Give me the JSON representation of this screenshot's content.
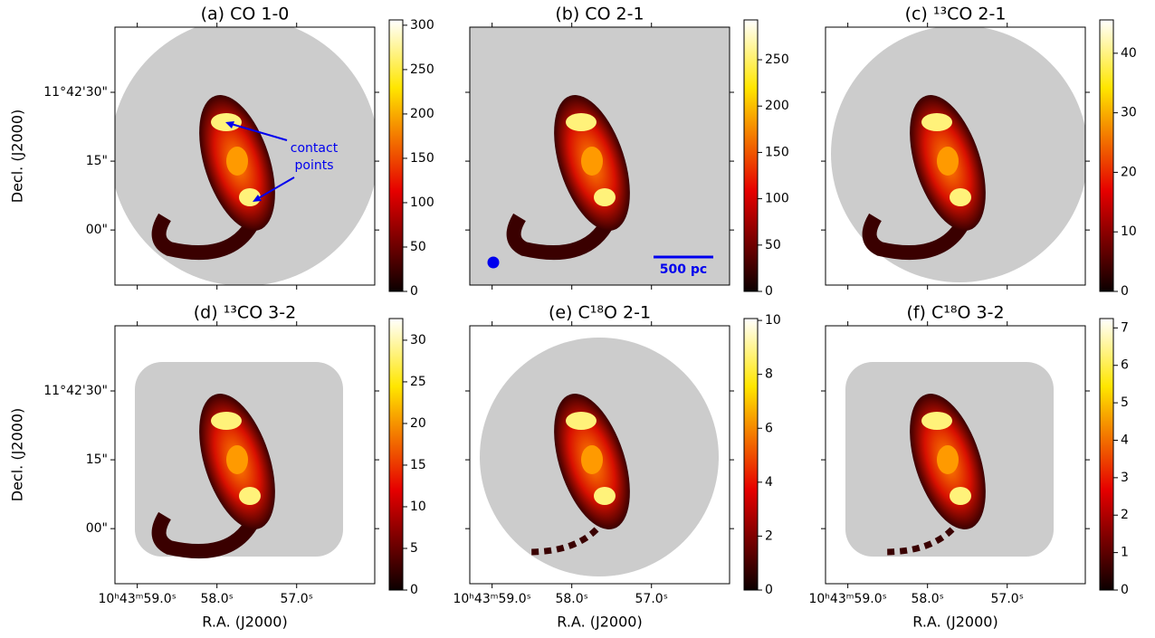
{
  "shared_axes": {
    "xlim": [
      59.28,
      56.02
    ],
    "xticks": [
      {
        "value": 59.0,
        "label": "10ʰ43ᵐ59.0ˢ"
      },
      {
        "value": 58.0,
        "label": "58.0ˢ"
      },
      {
        "value": 57.0,
        "label": "57.0ˢ"
      }
    ],
    "ylim": [
      -12.0,
      44.2
    ],
    "yticks": [
      {
        "value": 30,
        "label": "11°42'30\""
      },
      {
        "value": 15,
        "label": "15\""
      },
      {
        "value": 0,
        "label": "00\""
      }
    ],
    "xlabel": "R.A. (J2000)",
    "ylabel": "Decl. (J2000)"
  },
  "chart_data": [
    {
      "type": "heatmap",
      "title": "(a) CO 1-0",
      "clim": [
        0,
        306
      ],
      "cticks": [
        0,
        50,
        100,
        150,
        200,
        250,
        300
      ],
      "annotation_lines": [
        "contact",
        "points"
      ]
    },
    {
      "type": "heatmap",
      "title": "(b) CO 2-1",
      "clim": [
        0,
        293
      ],
      "cticks": [
        0,
        50,
        100,
        150,
        200,
        250
      ],
      "scalebar_label": "500 pc"
    },
    {
      "type": "heatmap",
      "title": "(c) ¹³CO 2-1",
      "clim": [
        0,
        45.6
      ],
      "cticks": [
        0,
        10,
        20,
        30,
        40
      ]
    },
    {
      "type": "heatmap",
      "title": "(d) ¹³CO 3-2",
      "clim": [
        0,
        32.6
      ],
      "cticks": [
        0,
        5,
        10,
        15,
        20,
        25,
        30
      ]
    },
    {
      "type": "heatmap",
      "title": "(e) C¹⁸O 2-1",
      "clim": [
        0,
        10.07
      ],
      "cticks": [
        0,
        2,
        4,
        6,
        8,
        10
      ]
    },
    {
      "type": "heatmap",
      "title": "(f) C¹⁸O 3-2",
      "clim": [
        0,
        7.25
      ],
      "cticks": [
        0,
        1,
        2,
        3,
        4,
        5,
        6,
        7
      ]
    }
  ]
}
